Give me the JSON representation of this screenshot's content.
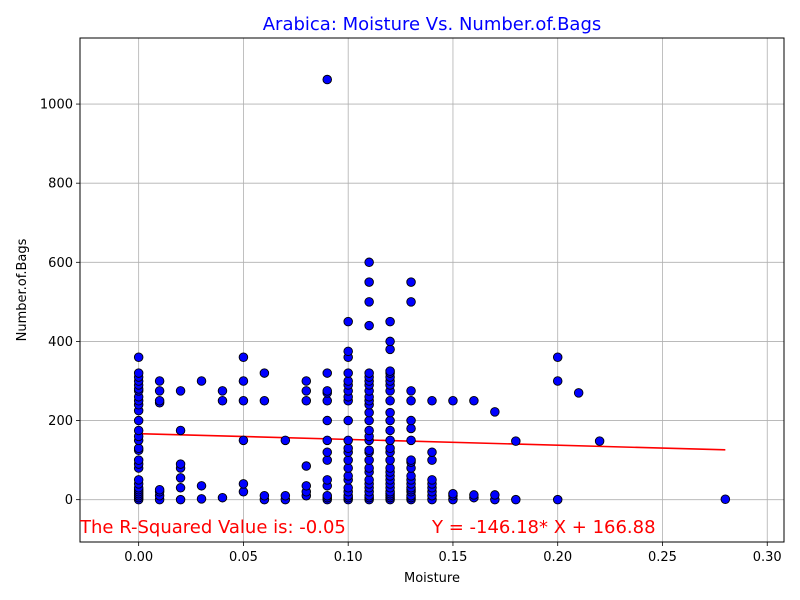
{
  "chart_data": {
    "type": "scatter",
    "title": "Arabica: Moisture Vs. Number.of.Bags",
    "xlabel": "Moisture",
    "ylabel": "Number.of.Bags",
    "xlim": [
      -0.028,
      0.308
    ],
    "ylim": [
      -107,
      1167
    ],
    "xticks": [
      0.0,
      0.05,
      0.1,
      0.15,
      0.2,
      0.25,
      0.3
    ],
    "xtick_labels": [
      "0.00",
      "0.05",
      "0.10",
      "0.15",
      "0.20",
      "0.25",
      "0.30"
    ],
    "yticks": [
      0,
      200,
      400,
      600,
      800,
      1000
    ],
    "ytick_labels": [
      "0",
      "200",
      "400",
      "600",
      "800",
      "1000"
    ],
    "grid": true,
    "colors": {
      "title": "#0000ff",
      "marker_fill": "#0000ff",
      "marker_edge": "#000000",
      "regression_line": "#ff0000",
      "annotation": "#ff0000",
      "grid": "#b0b0b0"
    },
    "points": [
      [
        0.0,
        0
      ],
      [
        0.0,
        5
      ],
      [
        0.0,
        10
      ],
      [
        0.0,
        15
      ],
      [
        0.0,
        20
      ],
      [
        0.0,
        25
      ],
      [
        0.0,
        30
      ],
      [
        0.0,
        40
      ],
      [
        0.0,
        50
      ],
      [
        0.0,
        80
      ],
      [
        0.0,
        90
      ],
      [
        0.0,
        100
      ],
      [
        0.0,
        125
      ],
      [
        0.0,
        130
      ],
      [
        0.0,
        150
      ],
      [
        0.0,
        160
      ],
      [
        0.0,
        175
      ],
      [
        0.0,
        200
      ],
      [
        0.0,
        225
      ],
      [
        0.0,
        240
      ],
      [
        0.0,
        250
      ],
      [
        0.0,
        260
      ],
      [
        0.0,
        275
      ],
      [
        0.0,
        280
      ],
      [
        0.0,
        290
      ],
      [
        0.0,
        300
      ],
      [
        0.0,
        310
      ],
      [
        0.0,
        320
      ],
      [
        0.0,
        360
      ],
      [
        0.01,
        0
      ],
      [
        0.01,
        10
      ],
      [
        0.01,
        20
      ],
      [
        0.01,
        25
      ],
      [
        0.01,
        245
      ],
      [
        0.01,
        250
      ],
      [
        0.01,
        275
      ],
      [
        0.01,
        300
      ],
      [
        0.02,
        0
      ],
      [
        0.02,
        30
      ],
      [
        0.02,
        55
      ],
      [
        0.02,
        80
      ],
      [
        0.02,
        90
      ],
      [
        0.02,
        175
      ],
      [
        0.02,
        275
      ],
      [
        0.03,
        2
      ],
      [
        0.03,
        35
      ],
      [
        0.03,
        300
      ],
      [
        0.04,
        5
      ],
      [
        0.04,
        250
      ],
      [
        0.04,
        275
      ],
      [
        0.05,
        20
      ],
      [
        0.05,
        40
      ],
      [
        0.05,
        150
      ],
      [
        0.05,
        250
      ],
      [
        0.05,
        300
      ],
      [
        0.05,
        360
      ],
      [
        0.06,
        0
      ],
      [
        0.06,
        10
      ],
      [
        0.06,
        250
      ],
      [
        0.06,
        320
      ],
      [
        0.07,
        0
      ],
      [
        0.07,
        10
      ],
      [
        0.07,
        150
      ],
      [
        0.08,
        10
      ],
      [
        0.08,
        20
      ],
      [
        0.08,
        35
      ],
      [
        0.08,
        85
      ],
      [
        0.08,
        250
      ],
      [
        0.08,
        275
      ],
      [
        0.08,
        300
      ],
      [
        0.09,
        0
      ],
      [
        0.09,
        5
      ],
      [
        0.09,
        10
      ],
      [
        0.09,
        35
      ],
      [
        0.09,
        50
      ],
      [
        0.09,
        100
      ],
      [
        0.09,
        120
      ],
      [
        0.09,
        150
      ],
      [
        0.09,
        200
      ],
      [
        0.09,
        250
      ],
      [
        0.09,
        270
      ],
      [
        0.09,
        275
      ],
      [
        0.09,
        320
      ],
      [
        0.09,
        1062
      ],
      [
        0.1,
        0
      ],
      [
        0.1,
        5
      ],
      [
        0.1,
        10
      ],
      [
        0.1,
        20
      ],
      [
        0.1,
        30
      ],
      [
        0.1,
        50
      ],
      [
        0.1,
        60
      ],
      [
        0.1,
        80
      ],
      [
        0.1,
        100
      ],
      [
        0.1,
        120
      ],
      [
        0.1,
        130
      ],
      [
        0.1,
        150
      ],
      [
        0.1,
        200
      ],
      [
        0.1,
        250
      ],
      [
        0.1,
        260
      ],
      [
        0.1,
        275
      ],
      [
        0.1,
        290
      ],
      [
        0.1,
        300
      ],
      [
        0.1,
        320
      ],
      [
        0.1,
        360
      ],
      [
        0.1,
        375
      ],
      [
        0.1,
        450
      ],
      [
        0.11,
        0
      ],
      [
        0.11,
        5
      ],
      [
        0.11,
        10
      ],
      [
        0.11,
        20
      ],
      [
        0.11,
        30
      ],
      [
        0.11,
        40
      ],
      [
        0.11,
        50
      ],
      [
        0.11,
        70
      ],
      [
        0.11,
        80
      ],
      [
        0.11,
        100
      ],
      [
        0.11,
        120
      ],
      [
        0.11,
        125
      ],
      [
        0.11,
        150
      ],
      [
        0.11,
        160
      ],
      [
        0.11,
        175
      ],
      [
        0.11,
        200
      ],
      [
        0.11,
        220
      ],
      [
        0.11,
        240
      ],
      [
        0.11,
        250
      ],
      [
        0.11,
        260
      ],
      [
        0.11,
        275
      ],
      [
        0.11,
        290
      ],
      [
        0.11,
        300
      ],
      [
        0.11,
        310
      ],
      [
        0.11,
        320
      ],
      [
        0.11,
        440
      ],
      [
        0.11,
        500
      ],
      [
        0.11,
        550
      ],
      [
        0.11,
        600
      ],
      [
        0.12,
        0
      ],
      [
        0.12,
        5
      ],
      [
        0.12,
        10
      ],
      [
        0.12,
        15
      ],
      [
        0.12,
        20
      ],
      [
        0.12,
        30
      ],
      [
        0.12,
        40
      ],
      [
        0.12,
        50
      ],
      [
        0.12,
        60
      ],
      [
        0.12,
        70
      ],
      [
        0.12,
        80
      ],
      [
        0.12,
        100
      ],
      [
        0.12,
        120
      ],
      [
        0.12,
        130
      ],
      [
        0.12,
        150
      ],
      [
        0.12,
        175
      ],
      [
        0.12,
        200
      ],
      [
        0.12,
        220
      ],
      [
        0.12,
        250
      ],
      [
        0.12,
        275
      ],
      [
        0.12,
        290
      ],
      [
        0.12,
        300
      ],
      [
        0.12,
        310
      ],
      [
        0.12,
        320
      ],
      [
        0.12,
        325
      ],
      [
        0.12,
        380
      ],
      [
        0.12,
        400
      ],
      [
        0.12,
        450
      ],
      [
        0.13,
        0
      ],
      [
        0.13,
        5
      ],
      [
        0.13,
        10
      ],
      [
        0.13,
        20
      ],
      [
        0.13,
        25
      ],
      [
        0.13,
        30
      ],
      [
        0.13,
        40
      ],
      [
        0.13,
        50
      ],
      [
        0.13,
        60
      ],
      [
        0.13,
        80
      ],
      [
        0.13,
        95
      ],
      [
        0.13,
        100
      ],
      [
        0.13,
        150
      ],
      [
        0.13,
        180
      ],
      [
        0.13,
        200
      ],
      [
        0.13,
        250
      ],
      [
        0.13,
        275
      ],
      [
        0.13,
        500
      ],
      [
        0.13,
        550
      ],
      [
        0.14,
        0
      ],
      [
        0.14,
        10
      ],
      [
        0.14,
        20
      ],
      [
        0.14,
        30
      ],
      [
        0.14,
        40
      ],
      [
        0.14,
        50
      ],
      [
        0.14,
        100
      ],
      [
        0.14,
        120
      ],
      [
        0.14,
        250
      ],
      [
        0.15,
        0
      ],
      [
        0.15,
        10
      ],
      [
        0.15,
        15
      ],
      [
        0.15,
        250
      ],
      [
        0.16,
        5
      ],
      [
        0.16,
        12
      ],
      [
        0.16,
        250
      ],
      [
        0.17,
        0
      ],
      [
        0.17,
        12
      ],
      [
        0.17,
        222
      ],
      [
        0.18,
        0
      ],
      [
        0.18,
        148
      ],
      [
        0.2,
        0
      ],
      [
        0.2,
        300
      ],
      [
        0.2,
        360
      ],
      [
        0.21,
        270
      ],
      [
        0.22,
        148
      ],
      [
        0.28,
        1
      ]
    ],
    "regression": {
      "slope": -146.18,
      "intercept": 166.88,
      "x_range": [
        0.0,
        0.28
      ]
    },
    "annotations": {
      "r_squared": "The R-Squared Value is: -0.05",
      "equation": "Y = -146.18* X + 166.88"
    }
  }
}
